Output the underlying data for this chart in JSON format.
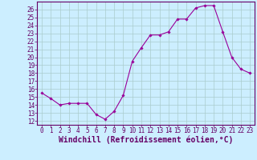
{
  "x": [
    0,
    1,
    2,
    3,
    4,
    5,
    6,
    7,
    8,
    9,
    10,
    11,
    12,
    13,
    14,
    15,
    16,
    17,
    18,
    19,
    20,
    21,
    22,
    23
  ],
  "y": [
    15.5,
    14.8,
    14.0,
    14.2,
    14.2,
    14.2,
    12.8,
    12.2,
    13.2,
    15.2,
    19.5,
    21.2,
    22.8,
    22.8,
    23.2,
    24.8,
    24.8,
    26.2,
    26.5,
    26.5,
    23.2,
    20.0,
    18.5,
    18.0
  ],
  "line_color": "#990099",
  "marker_color": "#990099",
  "bg_color": "#cceeff",
  "grid_color": "#aacccc",
  "xlabel": "Windchill (Refroidissement éolien,°C)",
  "xlim": [
    -0.5,
    23.5
  ],
  "ylim": [
    11.5,
    27.0
  ],
  "yticks": [
    12,
    13,
    14,
    15,
    16,
    17,
    18,
    19,
    20,
    21,
    22,
    23,
    24,
    25,
    26
  ],
  "xticks": [
    0,
    1,
    2,
    3,
    4,
    5,
    6,
    7,
    8,
    9,
    10,
    11,
    12,
    13,
    14,
    15,
    16,
    17,
    18,
    19,
    20,
    21,
    22,
    23
  ],
  "tick_fontsize": 5.5,
  "xlabel_fontsize": 7.0,
  "line_color_hex": "#990099",
  "spine_color": "#660066"
}
